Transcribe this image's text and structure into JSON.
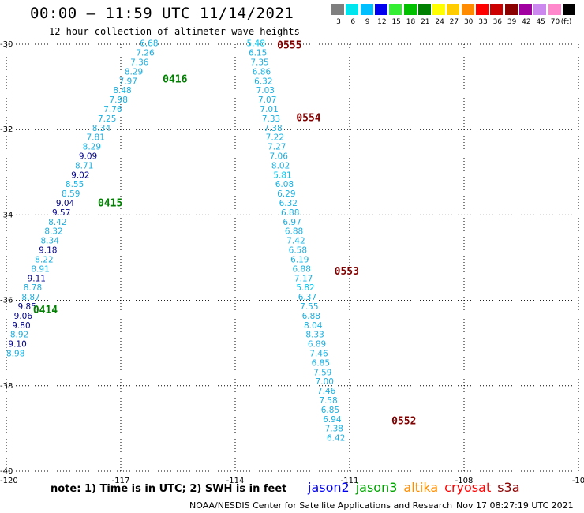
{
  "header": {
    "title": "00:00 – 11:59 UTC 11/14/2021",
    "subtitle": "12 hour collection of altimeter wave heights"
  },
  "legend": {
    "unit": "(ft)",
    "bins": [
      {
        "label": "3",
        "color": "#7f7f7f"
      },
      {
        "label": "6",
        "color": "#00e5ee"
      },
      {
        "label": "9",
        "color": "#00bfff"
      },
      {
        "label": "12",
        "color": "#0000ee"
      },
      {
        "label": "15",
        "color": "#33ee33"
      },
      {
        "label": "18",
        "color": "#00c000"
      },
      {
        "label": "21",
        "color": "#008000"
      },
      {
        "label": "24",
        "color": "#ffff00"
      },
      {
        "label": "27",
        "color": "#ffcc00"
      },
      {
        "label": "30",
        "color": "#ff8c00"
      },
      {
        "label": "33",
        "color": "#ff0000"
      },
      {
        "label": "36",
        "color": "#cc0000"
      },
      {
        "label": "39",
        "color": "#8b0000"
      },
      {
        "label": "42",
        "color": "#a000a0"
      },
      {
        "label": "45",
        "color": "#cc88ee"
      },
      {
        "label": "70",
        "color": "#ff88cc"
      },
      {
        "label": "",
        "color": "#000000"
      }
    ]
  },
  "map": {
    "lon_range": [
      -120,
      -105
    ],
    "lat_range": [
      -40,
      -30
    ],
    "lon_tick_labels": [
      "-120",
      "-117",
      "-114",
      "-111",
      "-108",
      "-10"
    ],
    "lat_tick_labels": [
      "-30",
      "-32",
      "-34",
      "-36",
      "-38",
      "-40"
    ],
    "colors": {
      "light": "#1bb0e0",
      "dark": "#000088",
      "cyan": "#00c8f0",
      "green": "#008000",
      "maroon": "#800000"
    },
    "tracks": [
      {
        "satellite": "jason3",
        "time_labels": [
          {
            "text": "0416",
            "lon": -115.9,
            "lat": -30.9
          },
          {
            "text": "0415",
            "lon": -117.6,
            "lat": -33.8
          },
          {
            "text": "0414",
            "lon": -119.3,
            "lat": -36.3
          }
        ],
        "points": [
          {
            "v": "6.68",
            "lon": -116.5,
            "lat": -30.05,
            "c": "light"
          },
          {
            "v": "7.26",
            "lon": -116.6,
            "lat": -30.27,
            "c": "light"
          },
          {
            "v": "7.36",
            "lon": -116.75,
            "lat": -30.49,
            "c": "light"
          },
          {
            "v": "8.29",
            "lon": -116.9,
            "lat": -30.71,
            "c": "light"
          },
          {
            "v": "7.97",
            "lon": -117.05,
            "lat": -30.93,
            "c": "light"
          },
          {
            "v": "8.48",
            "lon": -117.2,
            "lat": -31.15,
            "c": "light"
          },
          {
            "v": "7.98",
            "lon": -117.3,
            "lat": -31.37,
            "c": "light"
          },
          {
            "v": "7.76",
            "lon": -117.45,
            "lat": -31.59,
            "c": "light"
          },
          {
            "v": "7.25",
            "lon": -117.6,
            "lat": -31.81,
            "c": "light"
          },
          {
            "v": "8.34",
            "lon": -117.75,
            "lat": -32.03,
            "c": "light"
          },
          {
            "v": "7.81",
            "lon": -117.9,
            "lat": -32.25,
            "c": "light"
          },
          {
            "v": "8.29",
            "lon": -118.0,
            "lat": -32.47,
            "c": "light"
          },
          {
            "v": "9.09",
            "lon": -118.1,
            "lat": -32.69,
            "c": "dark"
          },
          {
            "v": "8.71",
            "lon": -118.2,
            "lat": -32.91,
            "c": "light"
          },
          {
            "v": "9.02",
            "lon": -118.3,
            "lat": -33.13,
            "c": "dark"
          },
          {
            "v": "8.55",
            "lon": -118.45,
            "lat": -33.35,
            "c": "light"
          },
          {
            "v": "8.59",
            "lon": -118.55,
            "lat": -33.57,
            "c": "light"
          },
          {
            "v": "9.04",
            "lon": -118.7,
            "lat": -33.79,
            "c": "dark"
          },
          {
            "v": "9.57",
            "lon": -118.8,
            "lat": -34.01,
            "c": "dark"
          },
          {
            "v": "8.42",
            "lon": -118.9,
            "lat": -34.23,
            "c": "light"
          },
          {
            "v": "8.32",
            "lon": -119.0,
            "lat": -34.45,
            "c": "light"
          },
          {
            "v": "8.34",
            "lon": -119.1,
            "lat": -34.67,
            "c": "light"
          },
          {
            "v": "9.18",
            "lon": -119.15,
            "lat": -34.89,
            "c": "dark"
          },
          {
            "v": "8.22",
            "lon": -119.25,
            "lat": -35.11,
            "c": "light"
          },
          {
            "v": "8.91",
            "lon": -119.35,
            "lat": -35.33,
            "c": "light"
          },
          {
            "v": "9.11",
            "lon": -119.45,
            "lat": -35.55,
            "c": "dark"
          },
          {
            "v": "8.78",
            "lon": -119.55,
            "lat": -35.77,
            "c": "light"
          },
          {
            "v": "8.87",
            "lon": -119.6,
            "lat": -35.99,
            "c": "light"
          },
          {
            "v": "9.85",
            "lon": -119.7,
            "lat": -36.21,
            "c": "dark"
          },
          {
            "v": "9.06",
            "lon": -119.8,
            "lat": -36.43,
            "c": "dark"
          },
          {
            "v": "9.80",
            "lon": -119.85,
            "lat": -36.65,
            "c": "dark"
          },
          {
            "v": "8.92",
            "lon": -119.9,
            "lat": -36.87,
            "c": "light"
          },
          {
            "v": "9.10",
            "lon": -119.95,
            "lat": -37.09,
            "c": "dark"
          },
          {
            "v": "8.98",
            "lon": -120.0,
            "lat": -37.31,
            "c": "light"
          }
        ]
      },
      {
        "satellite": "cryosat",
        "time_labels": [
          {
            "text": "0555",
            "lon": -112.9,
            "lat": -30.1
          },
          {
            "text": "0554",
            "lon": -112.4,
            "lat": -31.8
          },
          {
            "text": "0553",
            "lon": -111.4,
            "lat": -35.4
          },
          {
            "text": "0552",
            "lon": -109.9,
            "lat": -38.9
          }
        ],
        "points": [
          {
            "v": "5.48",
            "lon": -113.7,
            "lat": -30.05,
            "c": "cyan"
          },
          {
            "v": "6.15",
            "lon": -113.65,
            "lat": -30.27,
            "c": "light"
          },
          {
            "v": "7.35",
            "lon": -113.6,
            "lat": -30.49,
            "c": "light"
          },
          {
            "v": "6.86",
            "lon": -113.55,
            "lat": -30.71,
            "c": "light"
          },
          {
            "v": "6.32",
            "lon": -113.5,
            "lat": -30.93,
            "c": "light"
          },
          {
            "v": "7.03",
            "lon": -113.45,
            "lat": -31.15,
            "c": "light"
          },
          {
            "v": "7.07",
            "lon": -113.4,
            "lat": -31.37,
            "c": "light"
          },
          {
            "v": "7.01",
            "lon": -113.35,
            "lat": -31.59,
            "c": "light"
          },
          {
            "v": "7.33",
            "lon": -113.3,
            "lat": -31.81,
            "c": "light"
          },
          {
            "v": "7.38",
            "lon": -113.25,
            "lat": -32.03,
            "c": "light"
          },
          {
            "v": "7.22",
            "lon": -113.2,
            "lat": -32.25,
            "c": "light"
          },
          {
            "v": "7.27",
            "lon": -113.15,
            "lat": -32.47,
            "c": "light"
          },
          {
            "v": "7.06",
            "lon": -113.1,
            "lat": -32.69,
            "c": "light"
          },
          {
            "v": "8.02",
            "lon": -113.05,
            "lat": -32.91,
            "c": "light"
          },
          {
            "v": "5.81",
            "lon": -113.0,
            "lat": -33.13,
            "c": "cyan"
          },
          {
            "v": "6.08",
            "lon": -112.95,
            "lat": -33.35,
            "c": "light"
          },
          {
            "v": "6.29",
            "lon": -112.9,
            "lat": -33.57,
            "c": "light"
          },
          {
            "v": "6.32",
            "lon": -112.85,
            "lat": -33.79,
            "c": "light"
          },
          {
            "v": "6.88",
            "lon": -112.8,
            "lat": -34.01,
            "c": "light"
          },
          {
            "v": "6.97",
            "lon": -112.75,
            "lat": -34.23,
            "c": "light"
          },
          {
            "v": "6.88",
            "lon": -112.7,
            "lat": -34.45,
            "c": "light"
          },
          {
            "v": "7.42",
            "lon": -112.65,
            "lat": -34.67,
            "c": "light"
          },
          {
            "v": "6.58",
            "lon": -112.6,
            "lat": -34.89,
            "c": "light"
          },
          {
            "v": "6.19",
            "lon": -112.55,
            "lat": -35.11,
            "c": "light"
          },
          {
            "v": "6.88",
            "lon": -112.5,
            "lat": -35.33,
            "c": "light"
          },
          {
            "v": "7.17",
            "lon": -112.45,
            "lat": -35.55,
            "c": "light"
          },
          {
            "v": "5.82",
            "lon": -112.4,
            "lat": -35.77,
            "c": "cyan"
          },
          {
            "v": "6.37",
            "lon": -112.35,
            "lat": -35.99,
            "c": "light"
          },
          {
            "v": "7.55",
            "lon": -112.3,
            "lat": -36.21,
            "c": "light"
          },
          {
            "v": "6.88",
            "lon": -112.25,
            "lat": -36.43,
            "c": "light"
          },
          {
            "v": "8.04",
            "lon": -112.2,
            "lat": -36.65,
            "c": "light"
          },
          {
            "v": "8.33",
            "lon": -112.15,
            "lat": -36.87,
            "c": "light"
          },
          {
            "v": "6.89",
            "lon": -112.1,
            "lat": -37.09,
            "c": "light"
          },
          {
            "v": "7.46",
            "lon": -112.05,
            "lat": -37.31,
            "c": "light"
          },
          {
            "v": "6.85",
            "lon": -112.0,
            "lat": -37.53,
            "c": "light"
          },
          {
            "v": "7.59",
            "lon": -111.95,
            "lat": -37.75,
            "c": "light"
          },
          {
            "v": "7.00",
            "lon": -111.9,
            "lat": -37.97,
            "c": "light"
          },
          {
            "v": "7.46",
            "lon": -111.85,
            "lat": -38.19,
            "c": "light"
          },
          {
            "v": "7.58",
            "lon": -111.8,
            "lat": -38.41,
            "c": "light"
          },
          {
            "v": "6.85",
            "lon": -111.75,
            "lat": -38.63,
            "c": "light"
          },
          {
            "v": "6.94",
            "lon": -111.7,
            "lat": -38.85,
            "c": "light"
          },
          {
            "v": "7.38",
            "lon": -111.65,
            "lat": -39.07,
            "c": "light"
          },
          {
            "v": "6.42",
            "lon": -111.6,
            "lat": -39.29,
            "c": "light"
          }
        ]
      }
    ]
  },
  "footer": {
    "note": "note: 1) Time is in UTC; 2) SWH is in feet",
    "satellites": [
      {
        "name": "jason2",
        "color": "#0000ee"
      },
      {
        "name": "jason3",
        "color": "#00a000"
      },
      {
        "name": "altika",
        "color": "#ff8c00"
      },
      {
        "name": "cryosat",
        "color": "#ff0000"
      },
      {
        "name": "s3a",
        "color": "#8b0000"
      }
    ],
    "credit": "NOAA/NESDIS Center for Satellite Applications and Research",
    "timestamp": "Nov 17 08:27:19 UTC 2021"
  }
}
